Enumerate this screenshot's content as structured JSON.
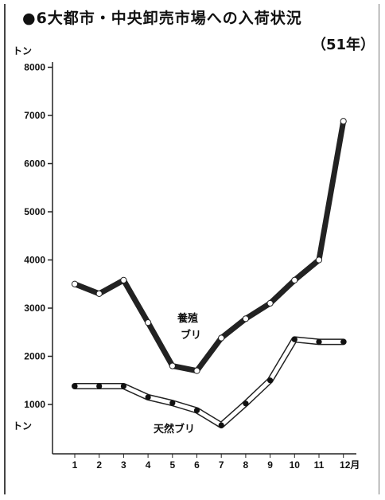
{
  "page": {
    "title_line1": "●6大都市・中央卸売市場への入荷状況",
    "title_line2": "（51年）",
    "unit_top": "トン",
    "unit_bottom": "トン"
  },
  "chart_data": {
    "type": "line",
    "title": "●6大都市・中央卸売市場への入荷状況（51年）",
    "xlabel": "",
    "ylabel": "トン",
    "x": [
      1,
      2,
      3,
      4,
      5,
      6,
      7,
      8,
      9,
      10,
      11,
      12
    ],
    "x_tick_labels": [
      "1",
      "2",
      "3",
      "4",
      "5",
      "6",
      "7",
      "8",
      "9",
      "10",
      "11",
      "12月"
    ],
    "y_tick_labels": [
      "1000",
      "2000",
      "3000",
      "4000",
      "5000",
      "6000",
      "7000",
      "8000"
    ],
    "ylim": [
      0,
      8000
    ],
    "grid": false,
    "series": [
      {
        "name": "養殖ブリ",
        "values": [
          3500,
          3300,
          3580,
          2700,
          1800,
          1700,
          2380,
          2780,
          3100,
          3580,
          4000,
          6880
        ]
      },
      {
        "name": "天然ブリ",
        "values": [
          1380,
          1380,
          1380,
          1150,
          1030,
          880,
          580,
          1020,
          1500,
          2350,
          2300,
          2300
        ]
      }
    ],
    "series_labels": [
      {
        "line1": "養殖",
        "line2": "ブリ"
      },
      {
        "line1": "天然ブリ"
      }
    ]
  }
}
